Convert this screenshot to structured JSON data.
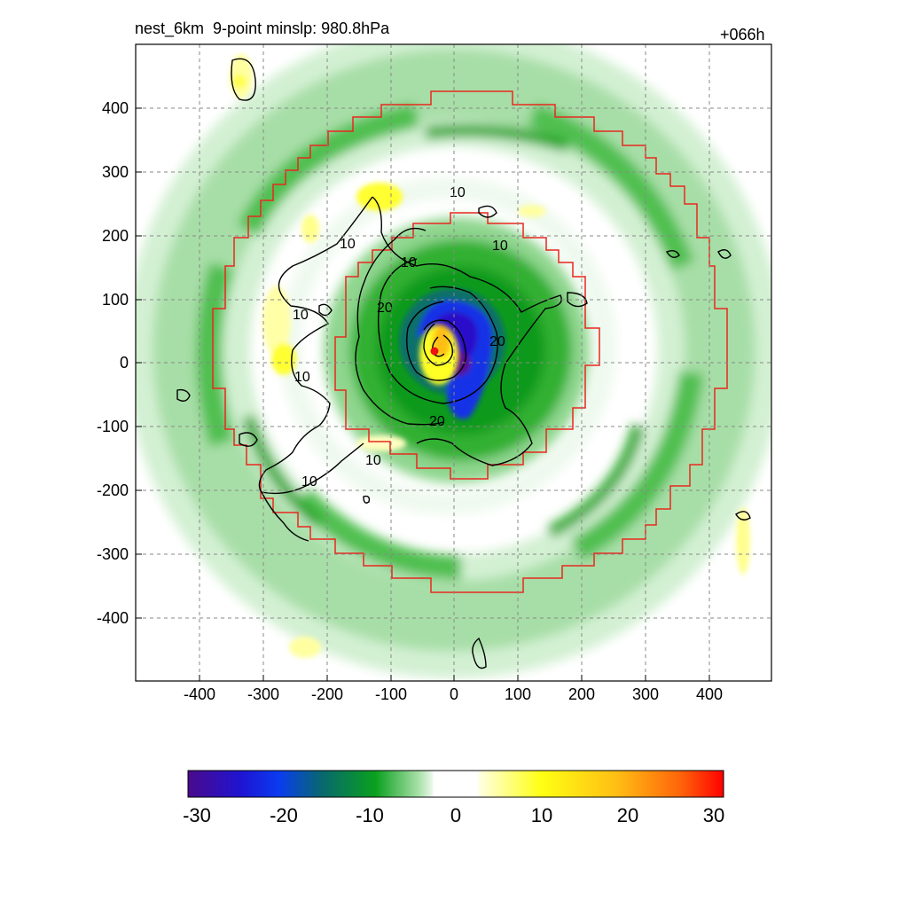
{
  "title": {
    "left": "nest_6km  9-point minslp: 980.8hPa",
    "right": "+066h"
  },
  "axes": {
    "x_ticks": [
      "-400",
      "-300",
      "-200",
      "-100",
      "0",
      "100",
      "200",
      "300",
      "400"
    ],
    "y_ticks": [
      "400",
      "300",
      "200",
      "100",
      "0",
      "-100",
      "-200",
      "-300",
      "-400"
    ],
    "xlim": [
      -500,
      500
    ],
    "ylim": [
      -500,
      500
    ],
    "grid": true
  },
  "colorbar": {
    "ticks": [
      "-30",
      "-20",
      "-10",
      "0",
      "10",
      "20",
      "30"
    ],
    "range": [
      -30,
      30
    ]
  },
  "contour_labels": [
    "10",
    "10",
    "10",
    "10",
    "20",
    "20",
    "20",
    "10",
    "10",
    "10",
    "10"
  ],
  "colors": {
    "boundary": "#e8281e",
    "center_marker": "#ee1111",
    "contour": "#000000",
    "grid": "#888888"
  },
  "chart_data": {
    "type": "heatmap",
    "title": "nest_6km  9-point minslp: 980.8hPa",
    "subtitle": "+066h",
    "xlim": [
      -500,
      500
    ],
    "ylim": [
      -500,
      500
    ],
    "colorbar_range": [
      -30,
      30
    ],
    "contour_levels": [
      10,
      20
    ]
  }
}
